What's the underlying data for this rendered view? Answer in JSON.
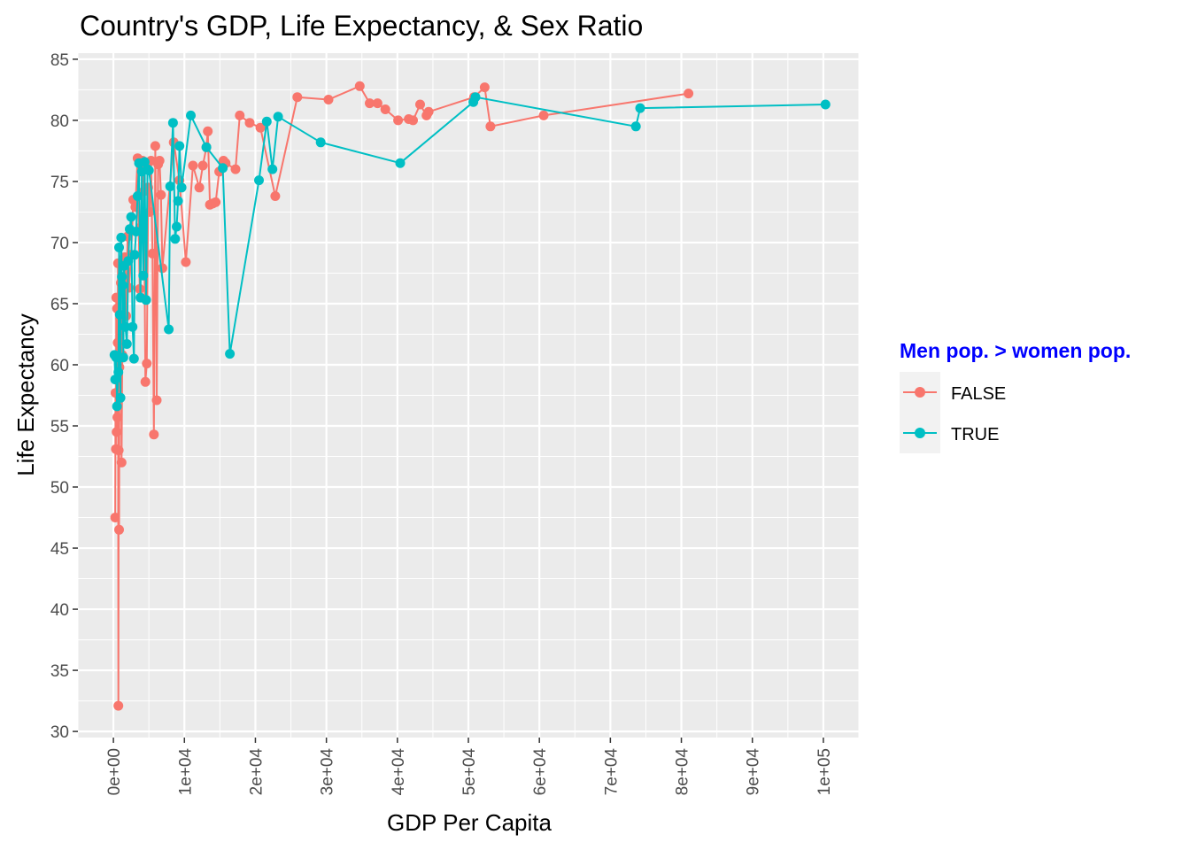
{
  "chart_data": {
    "type": "line",
    "title": "Country's GDP, Life Expectancy, & Sex Ratio",
    "xlabel": "GDP Per Capita",
    "ylabel": "Life Expectancy",
    "xlim": [
      -5000,
      105000
    ],
    "ylim": [
      29.5,
      85.5
    ],
    "x_ticks": [
      0,
      10000,
      20000,
      30000,
      40000,
      50000,
      60000,
      70000,
      80000,
      90000,
      100000
    ],
    "x_tick_labels": [
      "0e+00",
      "1e+04",
      "2e+04",
      "3e+04",
      "4e+04",
      "5e+04",
      "6e+04",
      "7e+04",
      "8e+04",
      "9e+04",
      "1e+05"
    ],
    "y_ticks": [
      30,
      35,
      40,
      45,
      50,
      55,
      60,
      65,
      70,
      75,
      80,
      85
    ],
    "y_tick_labels": [
      "30",
      "35",
      "40",
      "45",
      "50",
      "55",
      "60",
      "65",
      "70",
      "75",
      "80",
      "85"
    ],
    "grid": true,
    "legend": {
      "title": "Men pop. > women pop.",
      "placement": "right",
      "entries": [
        "FALSE",
        "TRUE"
      ]
    },
    "series": [
      {
        "name": "FALSE",
        "color": "#f8766d",
        "points": [
          [
            250,
            47.5
          ],
          [
            300,
            57.7
          ],
          [
            350,
            53.1
          ],
          [
            400,
            65.5
          ],
          [
            450,
            54.5
          ],
          [
            500,
            64.6
          ],
          [
            550,
            55.7
          ],
          [
            600,
            61.8
          ],
          [
            650,
            68.3
          ],
          [
            700,
            32.1
          ],
          [
            750,
            53.0
          ],
          [
            800,
            46.5
          ],
          [
            850,
            59.8
          ],
          [
            950,
            63.8
          ],
          [
            1050,
            66.7
          ],
          [
            1150,
            52.0
          ],
          [
            1250,
            60.8
          ],
          [
            1400,
            66.5
          ],
          [
            1600,
            68.8
          ],
          [
            1800,
            64.0
          ],
          [
            2000,
            70.5
          ],
          [
            2200,
            66.3
          ],
          [
            2500,
            69.0
          ],
          [
            2800,
            73.5
          ],
          [
            3100,
            72.9
          ],
          [
            3400,
            76.9
          ],
          [
            3700,
            66.2
          ],
          [
            3900,
            71.3
          ],
          [
            4100,
            76.7
          ],
          [
            4300,
            74.2
          ],
          [
            4500,
            58.6
          ],
          [
            4700,
            60.1
          ],
          [
            4900,
            74.5
          ],
          [
            5100,
            72.5
          ],
          [
            5300,
            76.7
          ],
          [
            5500,
            69.1
          ],
          [
            5700,
            54.3
          ],
          [
            5900,
            77.9
          ],
          [
            6100,
            57.1
          ],
          [
            6300,
            76.4
          ],
          [
            6500,
            76.7
          ],
          [
            6700,
            73.9
          ],
          [
            6900,
            67.9
          ],
          [
            8500,
            78.2
          ],
          [
            9300,
            75.1
          ],
          [
            10200,
            68.4
          ],
          [
            11200,
            76.3
          ],
          [
            12100,
            74.5
          ],
          [
            12600,
            76.3
          ],
          [
            13100,
            77.8
          ],
          [
            13300,
            79.1
          ],
          [
            13600,
            73.1
          ],
          [
            14000,
            73.2
          ],
          [
            14400,
            73.3
          ],
          [
            14900,
            75.8
          ],
          [
            15500,
            76.7
          ],
          [
            15800,
            76.5
          ],
          [
            17200,
            76.0
          ],
          [
            17800,
            80.4
          ],
          [
            19200,
            79.8
          ],
          [
            20700,
            79.4
          ],
          [
            22800,
            73.8
          ],
          [
            25900,
            81.9
          ],
          [
            30300,
            81.7
          ],
          [
            34700,
            82.8
          ],
          [
            36100,
            81.4
          ],
          [
            37200,
            81.4
          ],
          [
            38300,
            80.9
          ],
          [
            40100,
            80.0
          ],
          [
            41600,
            80.1
          ],
          [
            42200,
            80.0
          ],
          [
            43200,
            81.3
          ],
          [
            44100,
            80.4
          ],
          [
            44400,
            80.7
          ],
          [
            50800,
            81.9
          ],
          [
            52300,
            82.7
          ],
          [
            53100,
            79.5
          ],
          [
            60600,
            80.4
          ],
          [
            81000,
            82.2
          ]
        ]
      },
      {
        "name": "TRUE",
        "color": "#00bfc4",
        "points": [
          [
            150,
            60.8
          ],
          [
            250,
            58.8
          ],
          [
            400,
            60.6
          ],
          [
            500,
            56.6
          ],
          [
            700,
            59.4
          ],
          [
            800,
            69.6
          ],
          [
            900,
            64.1
          ],
          [
            1000,
            57.3
          ],
          [
            1100,
            70.4
          ],
          [
            1200,
            67.2
          ],
          [
            1300,
            66.5
          ],
          [
            1400,
            60.6
          ],
          [
            1500,
            68.1
          ],
          [
            1700,
            63.1
          ],
          [
            1900,
            61.7
          ],
          [
            2100,
            68.5
          ],
          [
            2300,
            71.1
          ],
          [
            2500,
            72.1
          ],
          [
            2700,
            63.1
          ],
          [
            2900,
            60.5
          ],
          [
            3000,
            69.0
          ],
          [
            3200,
            70.9
          ],
          [
            3400,
            73.8
          ],
          [
            3600,
            76.5
          ],
          [
            3800,
            65.5
          ],
          [
            4000,
            75.8
          ],
          [
            4200,
            67.3
          ],
          [
            4400,
            76.6
          ],
          [
            4600,
            65.3
          ],
          [
            4800,
            76.0
          ],
          [
            5000,
            75.9
          ],
          [
            7800,
            62.9
          ],
          [
            8000,
            74.6
          ],
          [
            8400,
            79.8
          ],
          [
            8700,
            70.3
          ],
          [
            8900,
            71.3
          ],
          [
            9100,
            73.4
          ],
          [
            9300,
            77.9
          ],
          [
            9600,
            74.5
          ],
          [
            10900,
            80.4
          ],
          [
            13100,
            77.8
          ],
          [
            15400,
            76.1
          ],
          [
            16400,
            60.9
          ],
          [
            20500,
            75.1
          ],
          [
            21600,
            79.9
          ],
          [
            22400,
            76.0
          ],
          [
            23200,
            80.3
          ],
          [
            29200,
            78.2
          ],
          [
            40400,
            76.5
          ],
          [
            50700,
            81.5
          ],
          [
            51000,
            81.9
          ],
          [
            73600,
            79.5
          ],
          [
            74200,
            81.0
          ],
          [
            100300,
            81.3
          ]
        ]
      }
    ]
  }
}
